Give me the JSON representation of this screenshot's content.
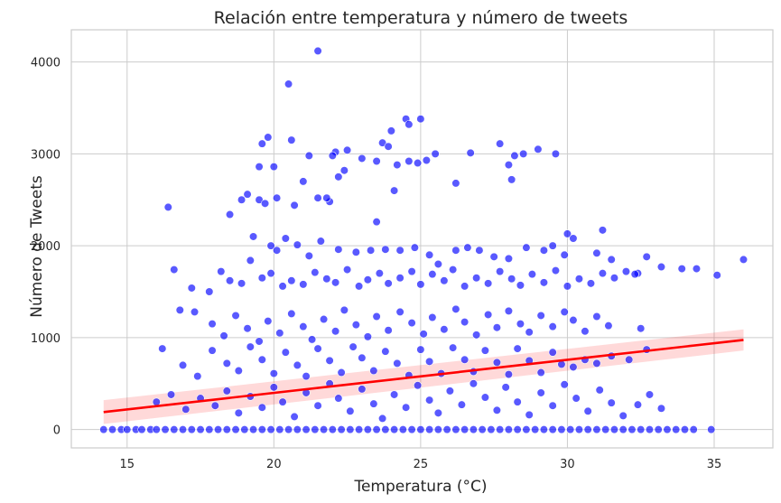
{
  "chart_data": {
    "type": "scatter",
    "title": "Relación entre temperatura y número de tweets",
    "xlabel": "Temperatura (°C)",
    "ylabel": "Número de Tweets",
    "xlim": [
      13.1,
      37.0
    ],
    "ylim": [
      -200,
      4350
    ],
    "x_ticks": [
      15,
      20,
      25,
      30,
      35
    ],
    "y_ticks": [
      0,
      1000,
      2000,
      3000,
      4000
    ],
    "grid": true,
    "point_color": "#0000ff",
    "point_opacity": 0.65,
    "regression": {
      "color": "#ff0000",
      "x": [
        14.2,
        36.0
      ],
      "y": [
        190,
        975
      ],
      "ci_lower": [
        60,
        860
      ],
      "ci_upper": [
        320,
        1090
      ]
    },
    "series": [
      {
        "values": [
          [
            14.2,
            0
          ],
          [
            14.5,
            0
          ],
          [
            14.8,
            0
          ],
          [
            15.0,
            0
          ],
          [
            15.3,
            0
          ],
          [
            15.5,
            0
          ],
          [
            15.8,
            0
          ],
          [
            16.0,
            0
          ],
          [
            16.3,
            0
          ],
          [
            16.6,
            0
          ],
          [
            16.9,
            0
          ],
          [
            17.2,
            0
          ],
          [
            17.5,
            0
          ],
          [
            17.8,
            0
          ],
          [
            18.1,
            0
          ],
          [
            18.4,
            0
          ],
          [
            18.7,
            0
          ],
          [
            19.0,
            0
          ],
          [
            19.3,
            0
          ],
          [
            19.6,
            0
          ],
          [
            19.9,
            0
          ],
          [
            20.2,
            0
          ],
          [
            20.5,
            0
          ],
          [
            20.8,
            0
          ],
          [
            21.1,
            0
          ],
          [
            21.4,
            0
          ],
          [
            21.7,
            0
          ],
          [
            22.0,
            0
          ],
          [
            22.3,
            0
          ],
          [
            22.6,
            0
          ],
          [
            22.9,
            0
          ],
          [
            23.2,
            0
          ],
          [
            23.5,
            0
          ],
          [
            23.8,
            0
          ],
          [
            24.1,
            0
          ],
          [
            24.4,
            0
          ],
          [
            24.7,
            0
          ],
          [
            25.0,
            0
          ],
          [
            25.3,
            0
          ],
          [
            25.6,
            0
          ],
          [
            25.9,
            0
          ],
          [
            26.2,
            0
          ],
          [
            26.5,
            0
          ],
          [
            26.8,
            0
          ],
          [
            27.1,
            0
          ],
          [
            27.4,
            0
          ],
          [
            27.7,
            0
          ],
          [
            28.0,
            0
          ],
          [
            28.3,
            0
          ],
          [
            28.6,
            0
          ],
          [
            28.9,
            0
          ],
          [
            29.2,
            0
          ],
          [
            29.5,
            0
          ],
          [
            29.8,
            0
          ],
          [
            30.1,
            0
          ],
          [
            30.4,
            0
          ],
          [
            30.7,
            0
          ],
          [
            31.0,
            0
          ],
          [
            31.3,
            0
          ],
          [
            31.6,
            0
          ],
          [
            31.9,
            0
          ],
          [
            32.2,
            0
          ],
          [
            32.5,
            0
          ],
          [
            32.8,
            0
          ],
          [
            33.1,
            0
          ],
          [
            33.4,
            0
          ],
          [
            33.7,
            0
          ],
          [
            34.0,
            0
          ],
          [
            34.3,
            0
          ],
          [
            34.9,
            0
          ],
          [
            21.5,
            4120
          ],
          [
            20.5,
            3760
          ],
          [
            24.5,
            3380
          ],
          [
            24.6,
            3320
          ],
          [
            24.0,
            3250
          ],
          [
            23.7,
            3120
          ],
          [
            23.9,
            3080
          ],
          [
            25.0,
            3380
          ],
          [
            27.7,
            3110
          ],
          [
            29.0,
            3050
          ],
          [
            29.6,
            3000
          ],
          [
            26.7,
            3010
          ],
          [
            22.5,
            3040
          ],
          [
            19.6,
            3110
          ],
          [
            19.8,
            3180
          ],
          [
            20.6,
            3150
          ],
          [
            22.1,
            3020
          ],
          [
            22.0,
            2980
          ],
          [
            23.0,
            2950
          ],
          [
            23.5,
            2920
          ],
          [
            24.2,
            2880
          ],
          [
            24.6,
            2920
          ],
          [
            24.9,
            2900
          ],
          [
            25.2,
            2930
          ],
          [
            25.5,
            3000
          ],
          [
            28.2,
            2980
          ],
          [
            28.5,
            3000
          ],
          [
            28.0,
            2880
          ],
          [
            28.1,
            2720
          ],
          [
            26.2,
            2680
          ],
          [
            21.0,
            2700
          ],
          [
            19.5,
            2860
          ],
          [
            20.0,
            2860
          ],
          [
            19.1,
            2560
          ],
          [
            18.9,
            2500
          ],
          [
            19.5,
            2500
          ],
          [
            19.7,
            2460
          ],
          [
            20.1,
            2520
          ],
          [
            20.7,
            2440
          ],
          [
            21.5,
            2520
          ],
          [
            21.9,
            2480
          ],
          [
            22.2,
            2750
          ],
          [
            22.4,
            2820
          ],
          [
            21.2,
            2980
          ],
          [
            21.8,
            2520
          ],
          [
            23.5,
            2260
          ],
          [
            24.1,
            2600
          ],
          [
            16.4,
            2420
          ],
          [
            18.5,
            2340
          ],
          [
            19.3,
            2100
          ],
          [
            19.9,
            2000
          ],
          [
            20.1,
            1950
          ],
          [
            20.4,
            2080
          ],
          [
            20.8,
            2010
          ],
          [
            21.2,
            1890
          ],
          [
            21.6,
            2050
          ],
          [
            22.2,
            1960
          ],
          [
            22.8,
            1930
          ],
          [
            23.3,
            1950
          ],
          [
            23.8,
            1960
          ],
          [
            24.3,
            1950
          ],
          [
            24.8,
            1980
          ],
          [
            25.3,
            1900
          ],
          [
            25.6,
            1800
          ],
          [
            26.2,
            1950
          ],
          [
            26.6,
            1980
          ],
          [
            27.0,
            1950
          ],
          [
            27.5,
            1880
          ],
          [
            28.0,
            1860
          ],
          [
            28.6,
            1980
          ],
          [
            29.2,
            1950
          ],
          [
            29.5,
            2000
          ],
          [
            29.9,
            1900
          ],
          [
            30.0,
            2130
          ],
          [
            30.2,
            2080
          ],
          [
            31.0,
            1920
          ],
          [
            31.2,
            2170
          ],
          [
            31.5,
            1850
          ],
          [
            32.4,
            1700
          ],
          [
            32.7,
            1880
          ],
          [
            33.2,
            1770
          ],
          [
            33.9,
            1750
          ],
          [
            34.4,
            1750
          ],
          [
            35.1,
            1680
          ],
          [
            36.0,
            1850
          ],
          [
            16.6,
            1740
          ],
          [
            17.2,
            1540
          ],
          [
            17.8,
            1500
          ],
          [
            18.2,
            1720
          ],
          [
            18.5,
            1620
          ],
          [
            18.9,
            1590
          ],
          [
            19.2,
            1840
          ],
          [
            19.6,
            1650
          ],
          [
            19.9,
            1700
          ],
          [
            20.3,
            1560
          ],
          [
            20.6,
            1620
          ],
          [
            21.0,
            1580
          ],
          [
            21.4,
            1710
          ],
          [
            21.8,
            1640
          ],
          [
            22.1,
            1600
          ],
          [
            22.5,
            1740
          ],
          [
            22.9,
            1560
          ],
          [
            23.2,
            1630
          ],
          [
            23.6,
            1700
          ],
          [
            23.9,
            1590
          ],
          [
            24.3,
            1650
          ],
          [
            24.7,
            1720
          ],
          [
            25.0,
            1580
          ],
          [
            25.4,
            1690
          ],
          [
            25.8,
            1620
          ],
          [
            26.1,
            1740
          ],
          [
            26.5,
            1560
          ],
          [
            26.9,
            1650
          ],
          [
            27.3,
            1590
          ],
          [
            27.7,
            1720
          ],
          [
            28.1,
            1640
          ],
          [
            28.4,
            1570
          ],
          [
            28.8,
            1690
          ],
          [
            29.2,
            1600
          ],
          [
            29.6,
            1730
          ],
          [
            30.0,
            1560
          ],
          [
            30.4,
            1640
          ],
          [
            30.8,
            1590
          ],
          [
            31.2,
            1700
          ],
          [
            31.6,
            1650
          ],
          [
            32.0,
            1720
          ],
          [
            32.3,
            1690
          ],
          [
            16.8,
            1300
          ],
          [
            17.3,
            1280
          ],
          [
            17.9,
            1150
          ],
          [
            18.3,
            1020
          ],
          [
            18.7,
            1240
          ],
          [
            19.1,
            1100
          ],
          [
            19.5,
            960
          ],
          [
            19.8,
            1180
          ],
          [
            20.2,
            1050
          ],
          [
            20.6,
            1260
          ],
          [
            21.0,
            1120
          ],
          [
            21.3,
            980
          ],
          [
            21.7,
            1200
          ],
          [
            22.1,
            1070
          ],
          [
            22.4,
            1300
          ],
          [
            22.8,
            1140
          ],
          [
            23.2,
            1010
          ],
          [
            23.5,
            1230
          ],
          [
            23.9,
            1080
          ],
          [
            24.3,
            1280
          ],
          [
            24.7,
            1160
          ],
          [
            25.1,
            1040
          ],
          [
            25.4,
            1220
          ],
          [
            25.8,
            1090
          ],
          [
            26.2,
            1310
          ],
          [
            26.5,
            1170
          ],
          [
            26.9,
            1030
          ],
          [
            27.3,
            1250
          ],
          [
            27.6,
            1110
          ],
          [
            28.0,
            1290
          ],
          [
            28.4,
            1150
          ],
          [
            28.7,
            1060
          ],
          [
            29.1,
            1240
          ],
          [
            29.5,
            1120
          ],
          [
            29.9,
            1280
          ],
          [
            30.2,
            1190
          ],
          [
            30.6,
            1070
          ],
          [
            31.0,
            1230
          ],
          [
            31.4,
            1130
          ],
          [
            16.2,
            880
          ],
          [
            16.9,
            700
          ],
          [
            17.4,
            580
          ],
          [
            17.9,
            860
          ],
          [
            18.4,
            720
          ],
          [
            18.8,
            640
          ],
          [
            19.2,
            900
          ],
          [
            19.6,
            760
          ],
          [
            20.0,
            610
          ],
          [
            20.4,
            840
          ],
          [
            20.8,
            700
          ],
          [
            21.1,
            580
          ],
          [
            21.5,
            880
          ],
          [
            21.9,
            750
          ],
          [
            22.3,
            620
          ],
          [
            22.7,
            900
          ],
          [
            23.0,
            780
          ],
          [
            23.4,
            640
          ],
          [
            23.8,
            850
          ],
          [
            24.2,
            720
          ],
          [
            24.6,
            590
          ],
          [
            25.0,
            870
          ],
          [
            25.3,
            740
          ],
          [
            25.7,
            610
          ],
          [
            26.1,
            890
          ],
          [
            26.5,
            760
          ],
          [
            26.8,
            630
          ],
          [
            27.2,
            860
          ],
          [
            27.6,
            730
          ],
          [
            28.0,
            600
          ],
          [
            28.3,
            880
          ],
          [
            28.7,
            750
          ],
          [
            29.1,
            620
          ],
          [
            29.5,
            840
          ],
          [
            29.8,
            710
          ],
          [
            30.2,
            680
          ],
          [
            30.6,
            760
          ],
          [
            31.0,
            720
          ],
          [
            31.5,
            800
          ],
          [
            32.1,
            760
          ],
          [
            32.5,
            1100
          ],
          [
            32.7,
            870
          ],
          [
            16.0,
            300
          ],
          [
            16.5,
            380
          ],
          [
            17.0,
            220
          ],
          [
            17.5,
            340
          ],
          [
            18.0,
            260
          ],
          [
            18.4,
            420
          ],
          [
            18.8,
            180
          ],
          [
            19.2,
            360
          ],
          [
            19.6,
            240
          ],
          [
            20.0,
            460
          ],
          [
            20.3,
            300
          ],
          [
            20.7,
            140
          ],
          [
            21.1,
            400
          ],
          [
            21.5,
            260
          ],
          [
            21.9,
            500
          ],
          [
            22.2,
            340
          ],
          [
            22.6,
            200
          ],
          [
            23.0,
            440
          ],
          [
            23.4,
            280
          ],
          [
            23.7,
            120
          ],
          [
            24.1,
            380
          ],
          [
            24.5,
            240
          ],
          [
            24.9,
            480
          ],
          [
            25.3,
            320
          ],
          [
            25.6,
            180
          ],
          [
            26.0,
            420
          ],
          [
            26.4,
            270
          ],
          [
            26.8,
            500
          ],
          [
            27.2,
            350
          ],
          [
            27.6,
            210
          ],
          [
            27.9,
            460
          ],
          [
            28.3,
            300
          ],
          [
            28.7,
            160
          ],
          [
            29.1,
            400
          ],
          [
            29.5,
            260
          ],
          [
            29.9,
            490
          ],
          [
            30.3,
            340
          ],
          [
            30.7,
            200
          ],
          [
            31.1,
            430
          ],
          [
            31.5,
            290
          ],
          [
            31.9,
            150
          ],
          [
            32.4,
            270
          ],
          [
            32.8,
            380
          ],
          [
            33.2,
            230
          ]
        ]
      }
    ]
  }
}
